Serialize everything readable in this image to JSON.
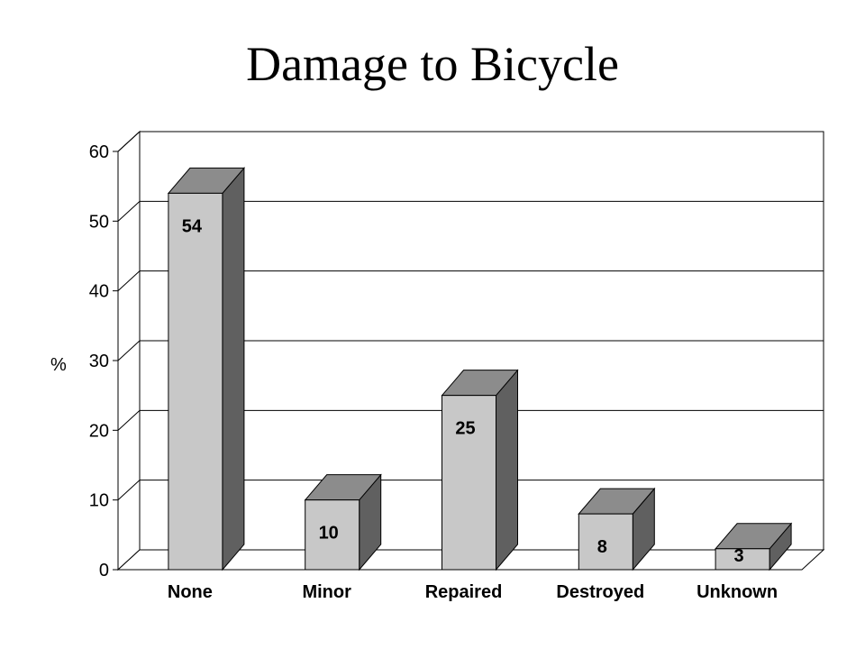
{
  "chart_data": {
    "type": "bar",
    "title": "Damage to Bicycle",
    "xlabel": "",
    "ylabel": "%",
    "categories": [
      "None",
      "Minor",
      "Repaired",
      "Destroyed",
      "Unknown"
    ],
    "values": [
      54,
      10,
      25,
      8,
      3
    ],
    "ylim": [
      0,
      60
    ],
    "yticks": [
      0,
      10,
      20,
      30,
      40,
      50,
      60
    ],
    "grid": true,
    "bar_style": "3d",
    "colors": {
      "bar_front": "#c8c8c8",
      "bar_top": "#8c8c8c",
      "bar_side": "#606060",
      "wall": "#ffffff",
      "line": "#000000"
    }
  }
}
